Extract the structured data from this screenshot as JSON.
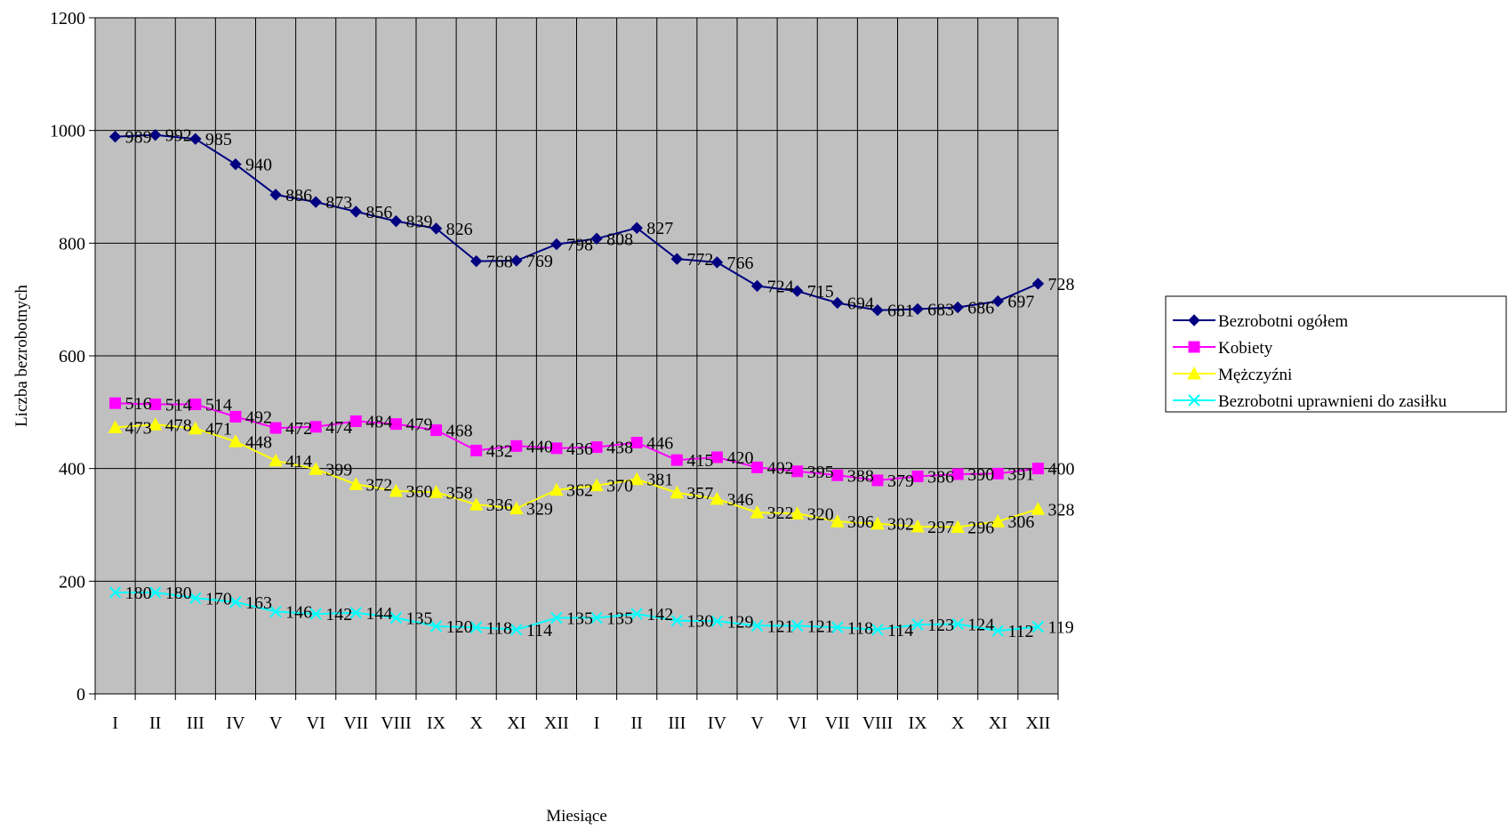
{
  "chart_data": {
    "type": "line",
    "xlabel": "Miesiące",
    "ylabel": "Liczba bezrobotnych",
    "ylim": [
      0,
      1200
    ],
    "yticks": [
      0,
      200,
      400,
      600,
      800,
      1000,
      1200
    ],
    "grid": true,
    "legend_position": "right",
    "plot_background": "#c0c0c0",
    "categories": [
      "I",
      "II",
      "III",
      "IV",
      "V",
      "VI",
      "VII",
      "VIII",
      "IX",
      "X",
      "XI",
      "XII",
      "I",
      "II",
      "III",
      "IV",
      "V",
      "VI",
      "VII",
      "VIII",
      "IX",
      "X",
      "XI",
      "XII"
    ],
    "series": [
      {
        "name": "Bezrobotni ogółem",
        "color": "#000080",
        "marker": "diamond",
        "values": [
          989,
          992,
          985,
          940,
          886,
          873,
          856,
          839,
          826,
          768,
          769,
          798,
          808,
          827,
          772,
          766,
          724,
          715,
          694,
          681,
          683,
          686,
          697,
          728
        ]
      },
      {
        "name": "Kobiety",
        "color": "#ff00ff",
        "marker": "square",
        "values": [
          516,
          514,
          514,
          492,
          472,
          474,
          484,
          479,
          468,
          432,
          440,
          436,
          438,
          446,
          415,
          420,
          402,
          395,
          388,
          379,
          386,
          390,
          391,
          400
        ]
      },
      {
        "name": "Mężczyźni",
        "color": "#ffff00",
        "marker": "triangle",
        "values": [
          473,
          478,
          471,
          448,
          414,
          399,
          372,
          360,
          358,
          336,
          329,
          362,
          370,
          381,
          357,
          346,
          322,
          320,
          306,
          302,
          297,
          296,
          306,
          328
        ]
      },
      {
        "name": "Bezrobotni uprawnieni do zasiłku",
        "color": "#00ffff",
        "marker": "x",
        "values": [
          180,
          180,
          170,
          163,
          146,
          142,
          144,
          135,
          120,
          118,
          114,
          135,
          135,
          142,
          130,
          129,
          121,
          121,
          118,
          114,
          123,
          124,
          112,
          119
        ]
      }
    ]
  }
}
